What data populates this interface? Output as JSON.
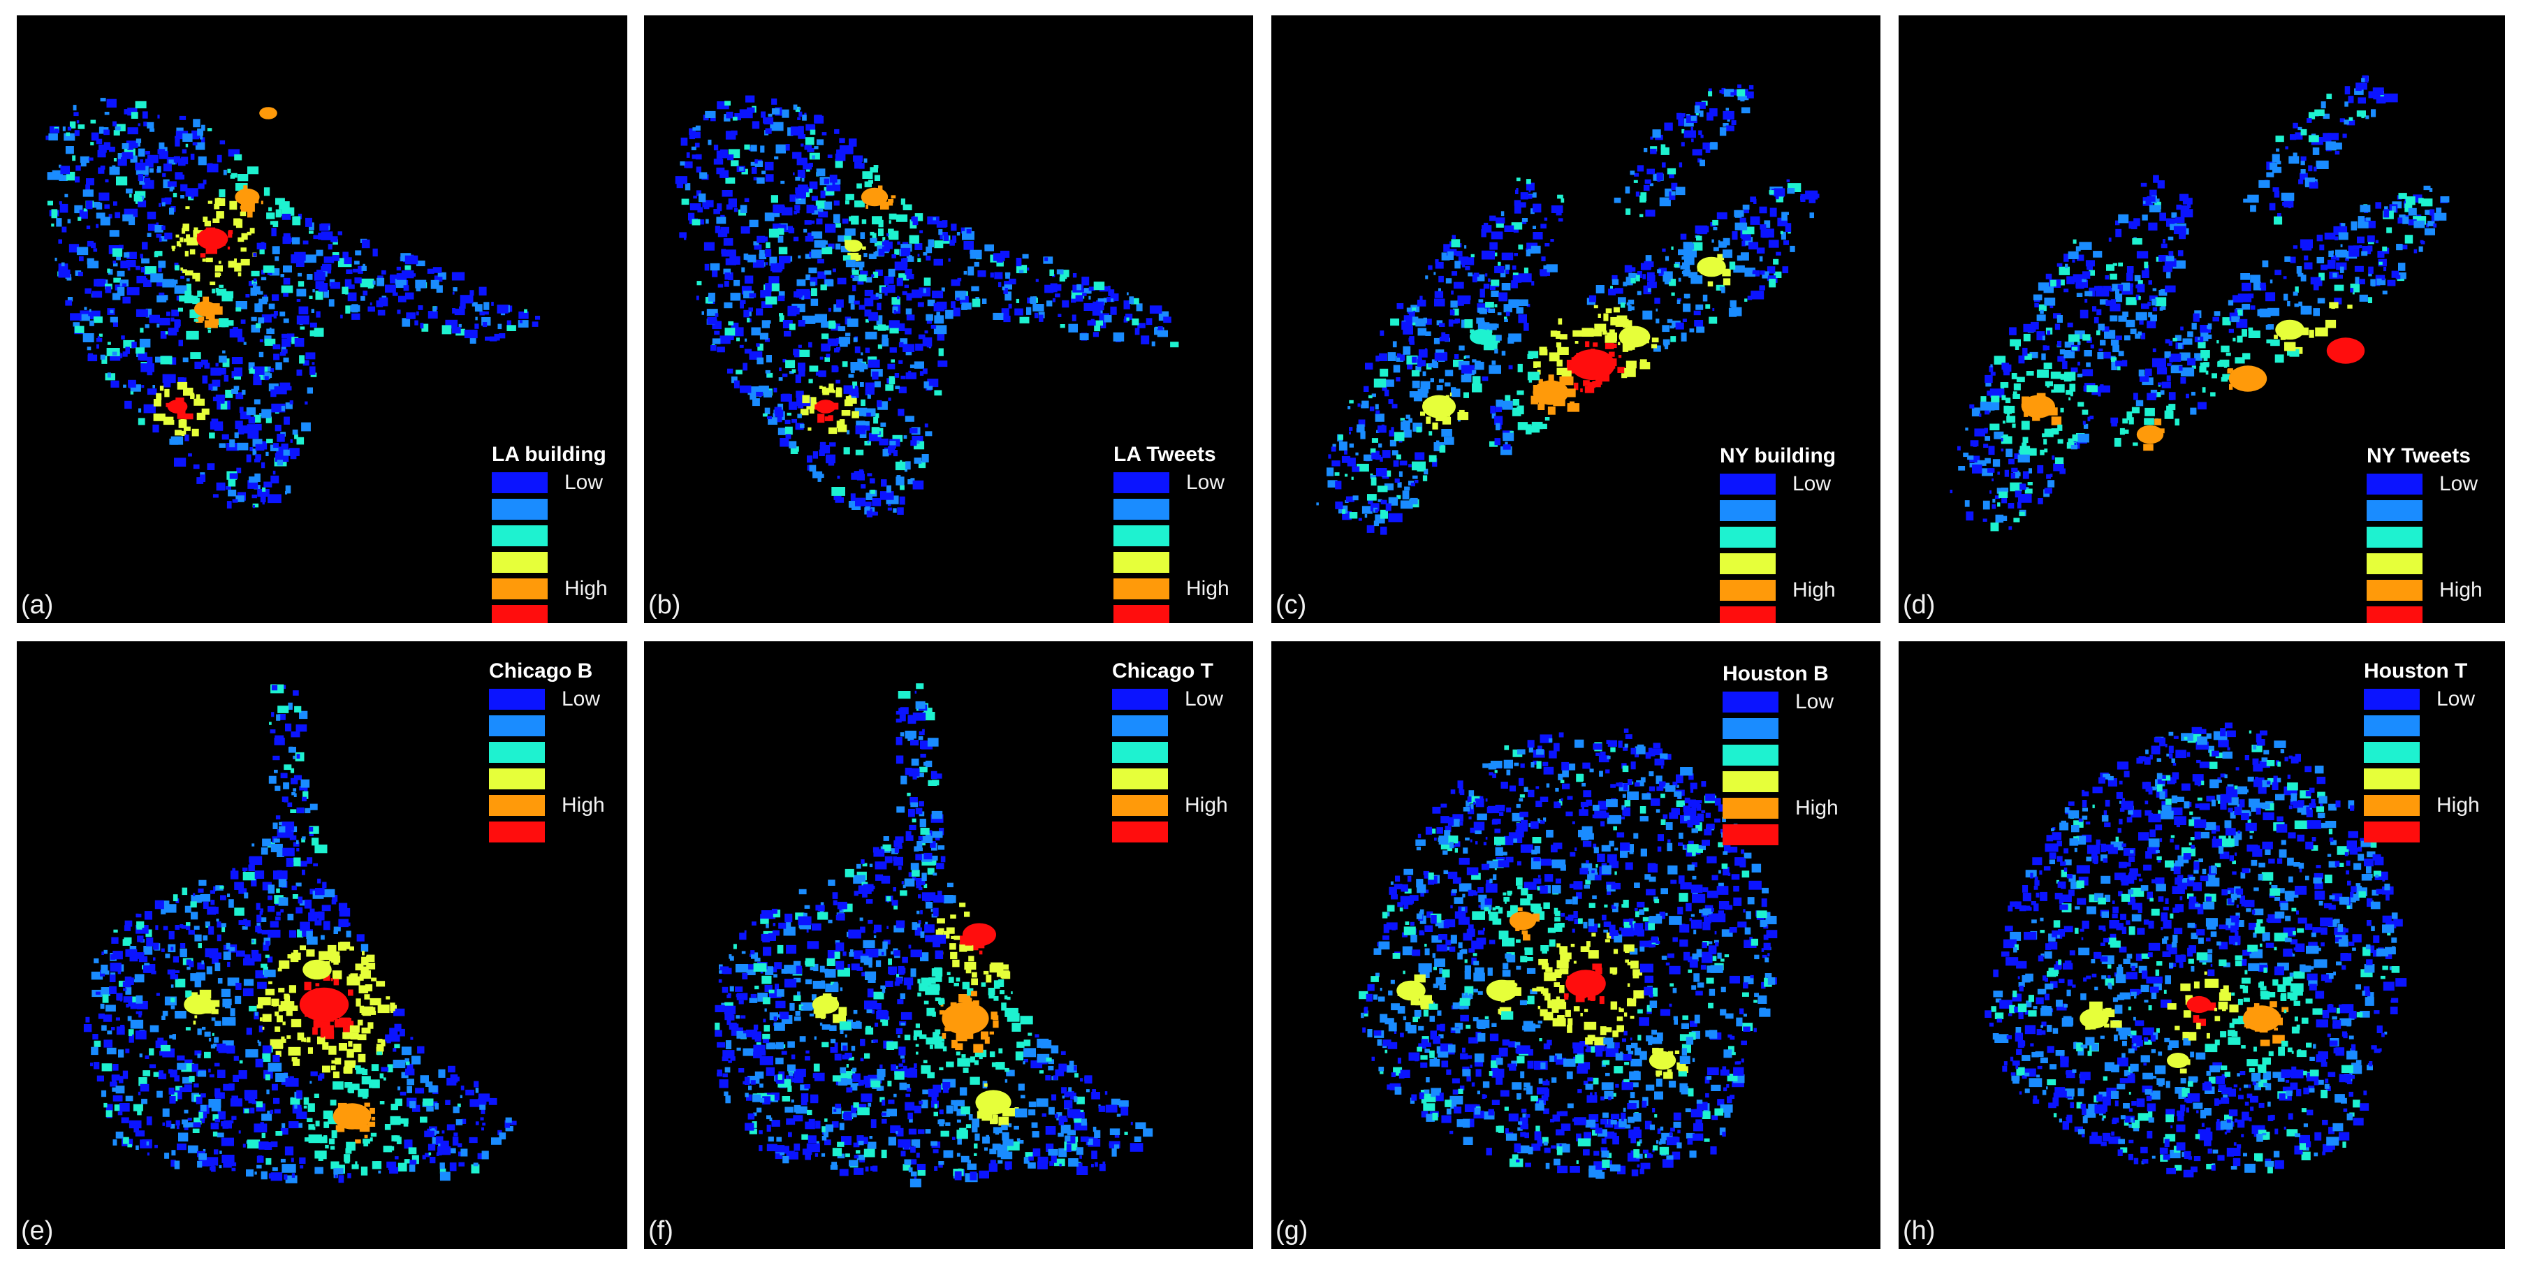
{
  "legend_labels": {
    "low": "Low",
    "high": "High"
  },
  "palette": [
    "#0b14ff",
    "#1a8cff",
    "#1ef2d0",
    "#e6ff3a",
    "#ff9a0a",
    "#ff0d0d"
  ],
  "panels": [
    {
      "tag": "(a)",
      "title": "LA building",
      "city": "LA"
    },
    {
      "tag": "(b)",
      "title": "LA Tweets",
      "city": "LA"
    },
    {
      "tag": "(c)",
      "title": "NY building",
      "city": "NY"
    },
    {
      "tag": "(d)",
      "title": "NY Tweets",
      "city": "NY"
    },
    {
      "tag": "(e)",
      "title": "Chicago B",
      "city": "Chicago"
    },
    {
      "tag": "(f)",
      "title": "Chicago T",
      "city": "Chicago"
    },
    {
      "tag": "(g)",
      "title": "Houston B",
      "city": "Houston"
    },
    {
      "tag": "(h)",
      "title": "Houston T",
      "city": "Houston"
    }
  ]
}
